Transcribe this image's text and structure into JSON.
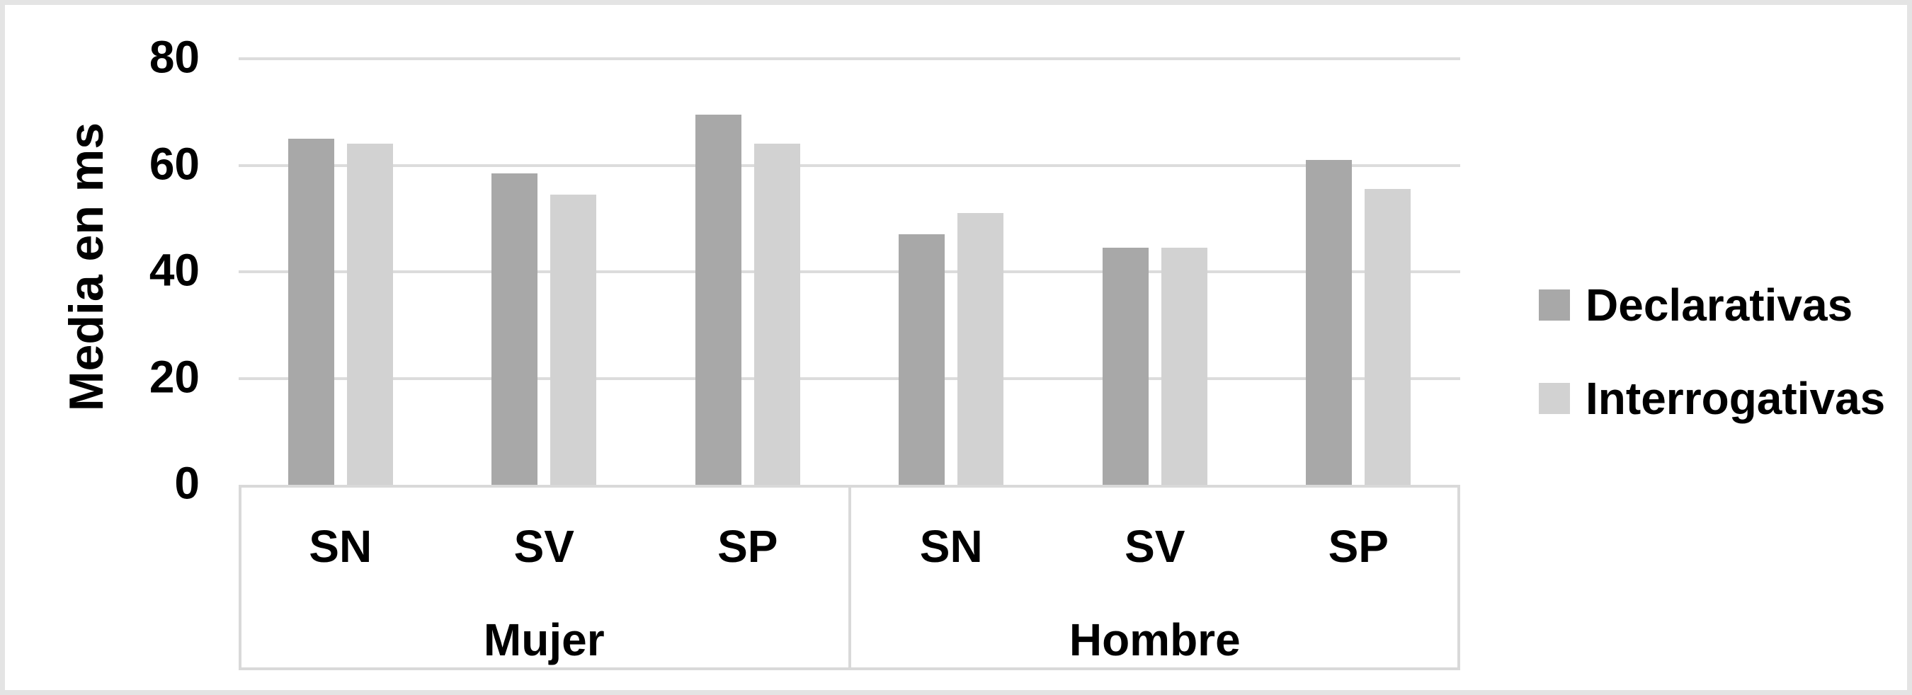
{
  "chart_data": {
    "type": "bar",
    "title": "",
    "xlabel": "",
    "ylabel": "Media en ms",
    "ylim": [
      0,
      80
    ],
    "yticks": [
      0,
      20,
      40,
      60,
      80
    ],
    "grid": true,
    "legend_position": "right",
    "groups": [
      {
        "label": "Mujer",
        "categories": [
          "SN",
          "SV",
          "SP"
        ]
      },
      {
        "label": "Hombre",
        "categories": [
          "SN",
          "SV",
          "SP"
        ]
      }
    ],
    "categories": [
      "SN",
      "SV",
      "SP",
      "SN",
      "SV",
      "SP"
    ],
    "series": [
      {
        "name": "Declarativas",
        "color": "#a8a8a8",
        "values": [
          65,
          58.5,
          69.5,
          47,
          44.5,
          61
        ]
      },
      {
        "name": "Interrogativas",
        "color": "#d2d2d2",
        "values": [
          64,
          54.5,
          64,
          51,
          44.5,
          55.5
        ]
      }
    ]
  },
  "colors": {
    "background": "#ffffff",
    "frame_border": "#e4e4e4",
    "gridline": "#dcdcdc",
    "axis_box_border": "#d9d9d9",
    "text": "#000000"
  }
}
